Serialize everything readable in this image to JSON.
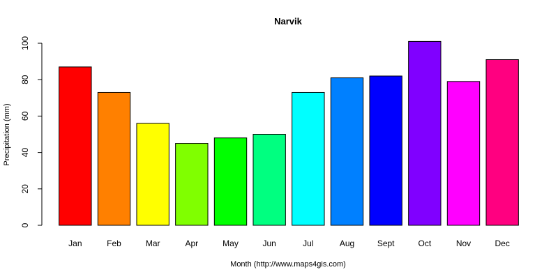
{
  "chart_data": {
    "type": "bar",
    "title": "Narvik",
    "xlabel": "Month (http://www.maps4gis.com)",
    "ylabel": "Precipitation (mm)",
    "categories": [
      "Jan",
      "Feb",
      "Mar",
      "Apr",
      "May",
      "Jun",
      "Jul",
      "Aug",
      "Sept",
      "Oct",
      "Nov",
      "Dec"
    ],
    "values": [
      87,
      73,
      56,
      45,
      48,
      50,
      73,
      81,
      82,
      101,
      79,
      91
    ],
    "colors": [
      "#FF0000",
      "#FF8000",
      "#FFFF00",
      "#80FF00",
      "#00FF00",
      "#00FF80",
      "#00FFFF",
      "#0080FF",
      "#0000FF",
      "#8000FF",
      "#FF00FF",
      "#FF0080"
    ],
    "bar_outline_color": "#000000",
    "ylim": [
      0,
      100
    ],
    "yticks": [
      0,
      20,
      40,
      60,
      80,
      100
    ],
    "grid": false,
    "legend": "none"
  }
}
